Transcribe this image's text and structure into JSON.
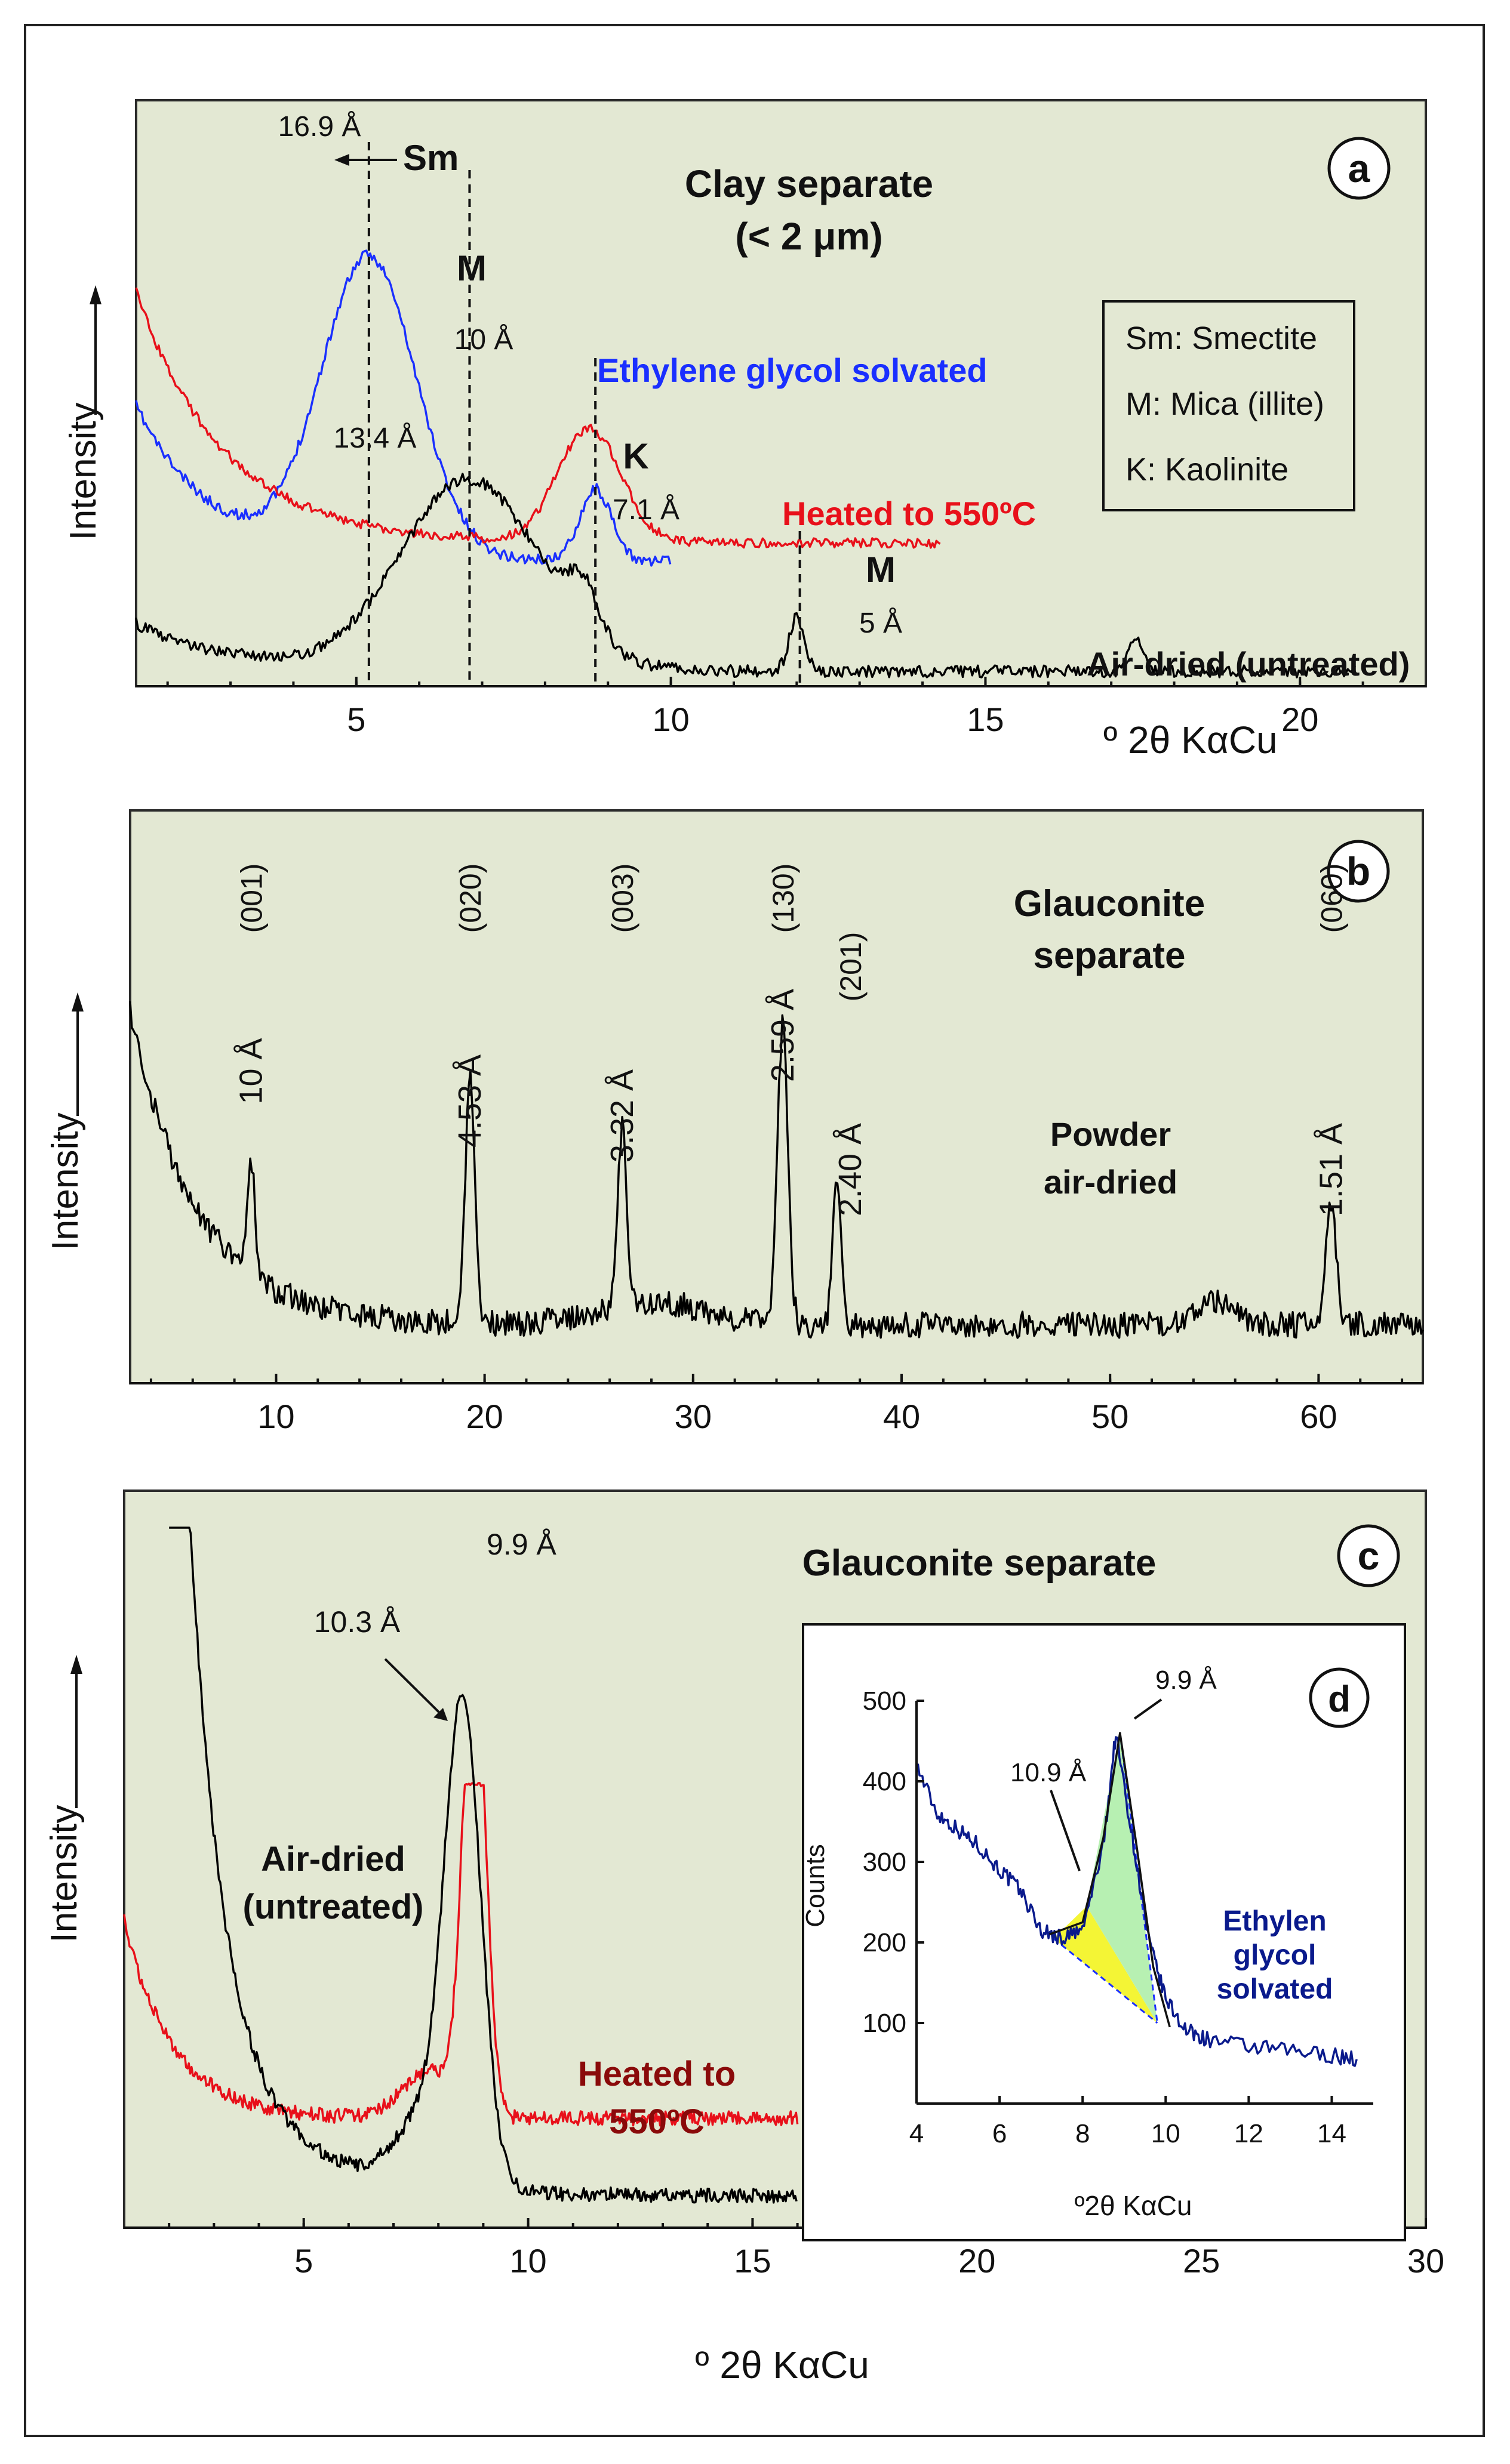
{
  "chart_data": [
    {
      "id": "a",
      "type": "line",
      "panel_letter": "a",
      "title": "Clay separate",
      "subtitle": "(< 2 μm)",
      "xlabel": "º 2θ KαCu",
      "ylabel": "Intensity",
      "xlim": [
        1.5,
        22
      ],
      "ticks": [
        5,
        10,
        15,
        20
      ],
      "tick_labels": [
        "5",
        "10",
        "15",
        "20"
      ],
      "legend": [
        "Sm: Smectite",
        "M: Mica (illite)",
        "K: Kaolinite"
      ],
      "series": [
        {
          "name": "Ethylene glycol solvated",
          "color": "#1a2fff",
          "x_range": [
            1.5,
            10
          ],
          "peaks": [
            "16.9 Å",
            "10 Å"
          ]
        },
        {
          "name": "Heated to 550ºC",
          "color": "#e8101a",
          "x_range": [
            1.5,
            14.3
          ],
          "peaks": [
            "10 Å"
          ]
        },
        {
          "name": "Air-dried (untreated)",
          "color": "#000000",
          "x_range": [
            1.5,
            20.9
          ],
          "peaks": [
            "13.4 Å",
            "10 Å",
            "7.1 Å",
            "5 Å"
          ]
        }
      ],
      "reference_lines_2theta": [
        5.2,
        6.8,
        8.8,
        12.05
      ],
      "annotations": [
        "16.9 Å",
        "Sm",
        "M",
        "10 Å",
        "13.4 Å",
        "K",
        "7.1 Å",
        "M",
        "5 Å"
      ]
    },
    {
      "id": "b",
      "type": "line",
      "panel_letter": "b",
      "title": "Glauconite separate",
      "sample": "Powder air-dried",
      "xlabel": "",
      "ylabel": "Intensity",
      "xlim": [
        3,
        65
      ],
      "ticks": [
        10,
        20,
        30,
        40,
        50,
        60
      ],
      "tick_labels": [
        "10",
        "20",
        "30",
        "40",
        "50",
        "60"
      ],
      "peaks": [
        {
          "hkl": "(001)",
          "d": "10 Å",
          "two_theta": 8.8
        },
        {
          "hkl": "(020)",
          "d": "4.53 Å",
          "two_theta": 19.3
        },
        {
          "hkl": "(003)",
          "d": "3.32 Å",
          "two_theta": 26.6
        },
        {
          "hkl": "(130)",
          "d": "2.59 Å",
          "two_theta": 34.3
        },
        {
          "hkl": "(201)",
          "d": "2.40 Å",
          "two_theta": 36.9
        },
        {
          "hkl": "(060)",
          "d": "1.51 Å",
          "two_theta": 60.6
        }
      ]
    },
    {
      "id": "c",
      "type": "line",
      "panel_letter": "c",
      "title": "Glauconite separate",
      "xlabel": "º 2θ KαCu",
      "ylabel": "Intensity",
      "xlim": [
        1,
        30
      ],
      "ticks": [
        5,
        10,
        15,
        20,
        25,
        30
      ],
      "tick_labels": [
        "5",
        "10",
        "15",
        "20",
        "25",
        "30"
      ],
      "series": [
        {
          "name": "Air-dried (untreated)",
          "label_line1": "Air-dried",
          "label_line2": "(untreated)",
          "color": "#000000",
          "peak": "10.3 Å",
          "peak_2theta": 8.55
        },
        {
          "name": "Heated to 550ºC",
          "label_line1": "Heated to",
          "label_line2": "550ºC",
          "color": "#e8101a",
          "peak": "9.9 Å",
          "peak_2theta": 8.8
        }
      ]
    },
    {
      "id": "d",
      "type": "line",
      "panel_letter": "d",
      "xlabel": "º2θ KαCu",
      "ylabel": "Counts",
      "xlim": [
        4,
        15
      ],
      "ylim": [
        0,
        500
      ],
      "xticks": [
        4,
        6,
        8,
        10,
        12,
        14
      ],
      "xtick_labels": [
        "4",
        "6",
        "8",
        "10",
        "12",
        "14"
      ],
      "yticks": [
        100,
        200,
        300,
        400,
        500
      ],
      "ytick_labels": [
        "100",
        "200",
        "300",
        "400",
        "500"
      ],
      "series_label": [
        "Ethylen",
        "glycol",
        "solvated"
      ],
      "color": "#0a1a8c",
      "points": [
        [
          4,
          420
        ],
        [
          4.5,
          360
        ],
        [
          5,
          340
        ],
        [
          5.5,
          320
        ],
        [
          6,
          290
        ],
        [
          6.5,
          265
        ],
        [
          7,
          215
        ],
        [
          7.5,
          205
        ],
        [
          8,
          215
        ],
        [
          8.5,
          320
        ],
        [
          8.8,
          460
        ],
        [
          9.2,
          330
        ],
        [
          9.6,
          200
        ],
        [
          10,
          130
        ],
        [
          10.5,
          90
        ],
        [
          11,
          80
        ],
        [
          12,
          70
        ],
        [
          13,
          65
        ],
        [
          14,
          60
        ],
        [
          14.6,
          55
        ]
      ],
      "fitted_peaks": [
        {
          "label": "10.9 Å",
          "center": 8.1,
          "fill": "#f4f535"
        },
        {
          "label": "9.9 Å",
          "center": 8.9,
          "fill": "#b7f0b2"
        }
      ]
    }
  ]
}
